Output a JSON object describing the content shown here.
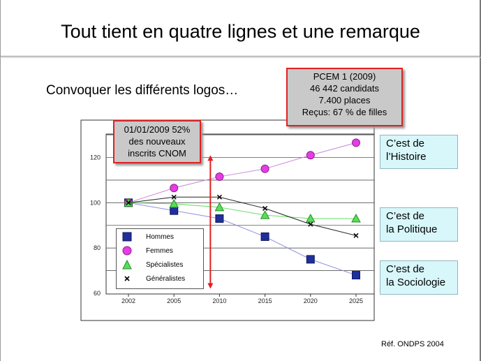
{
  "slide": {
    "title": "Tout tient en quatre lignes et une remarque",
    "subtitle": "Convoquer les différents logos…",
    "reference": "Réf. ONDPS 2004"
  },
  "callouts": {
    "pcem": [
      "PCEM 1 (2009)",
      "46 442 candidats",
      "7.400 places",
      "Reçus: 67 % de filles"
    ],
    "cnom": [
      "01/01/2009 52%",
      "des nouveaux",
      "inscrits CNOM"
    ]
  },
  "side_boxes": [
    [
      "C’est de",
      "l’Histoire"
    ],
    [
      "C’est de",
      "la Politique"
    ],
    [
      "C’est de",
      "la Sociologie"
    ]
  ],
  "colors": {
    "hommes": "#1f2f9c",
    "femmes": "#e63ce6",
    "specialistes": "#55e055",
    "generalistes": "#000000",
    "callout_border": "#e02020",
    "callout_fill": "#c9c9c9",
    "side_fill": "#d8f7fa"
  },
  "chart_data": {
    "type": "line",
    "x": [
      "2002",
      "2005",
      "2010",
      "2015",
      "2020",
      "2025"
    ],
    "ylim": [
      60,
      130
    ],
    "yticks": [
      60,
      80,
      100,
      120
    ],
    "grid": true,
    "legend_position": "bottom-left",
    "series": [
      {
        "name": "Hommes",
        "marker": "square",
        "color_key": "hommes",
        "values": [
          100,
          96.5,
          93,
          85,
          75,
          68
        ]
      },
      {
        "name": "Femmes",
        "marker": "circle",
        "color_key": "femmes",
        "values": [
          100,
          106.5,
          111.5,
          115,
          121,
          126.5
        ]
      },
      {
        "name": "Spécialistes",
        "marker": "triangle",
        "color_key": "specialistes",
        "values": [
          100,
          99.5,
          98,
          94.5,
          93,
          93
        ]
      },
      {
        "name": "Généralistes",
        "marker": "x",
        "color_key": "generalistes",
        "values": [
          100,
          102.5,
          102.5,
          97.5,
          90.5,
          85.5
        ]
      }
    ],
    "marker_2009": {
      "x_between": [
        "2005",
        "2010"
      ],
      "position": 0.8,
      "from": 62,
      "to": 121
    }
  }
}
